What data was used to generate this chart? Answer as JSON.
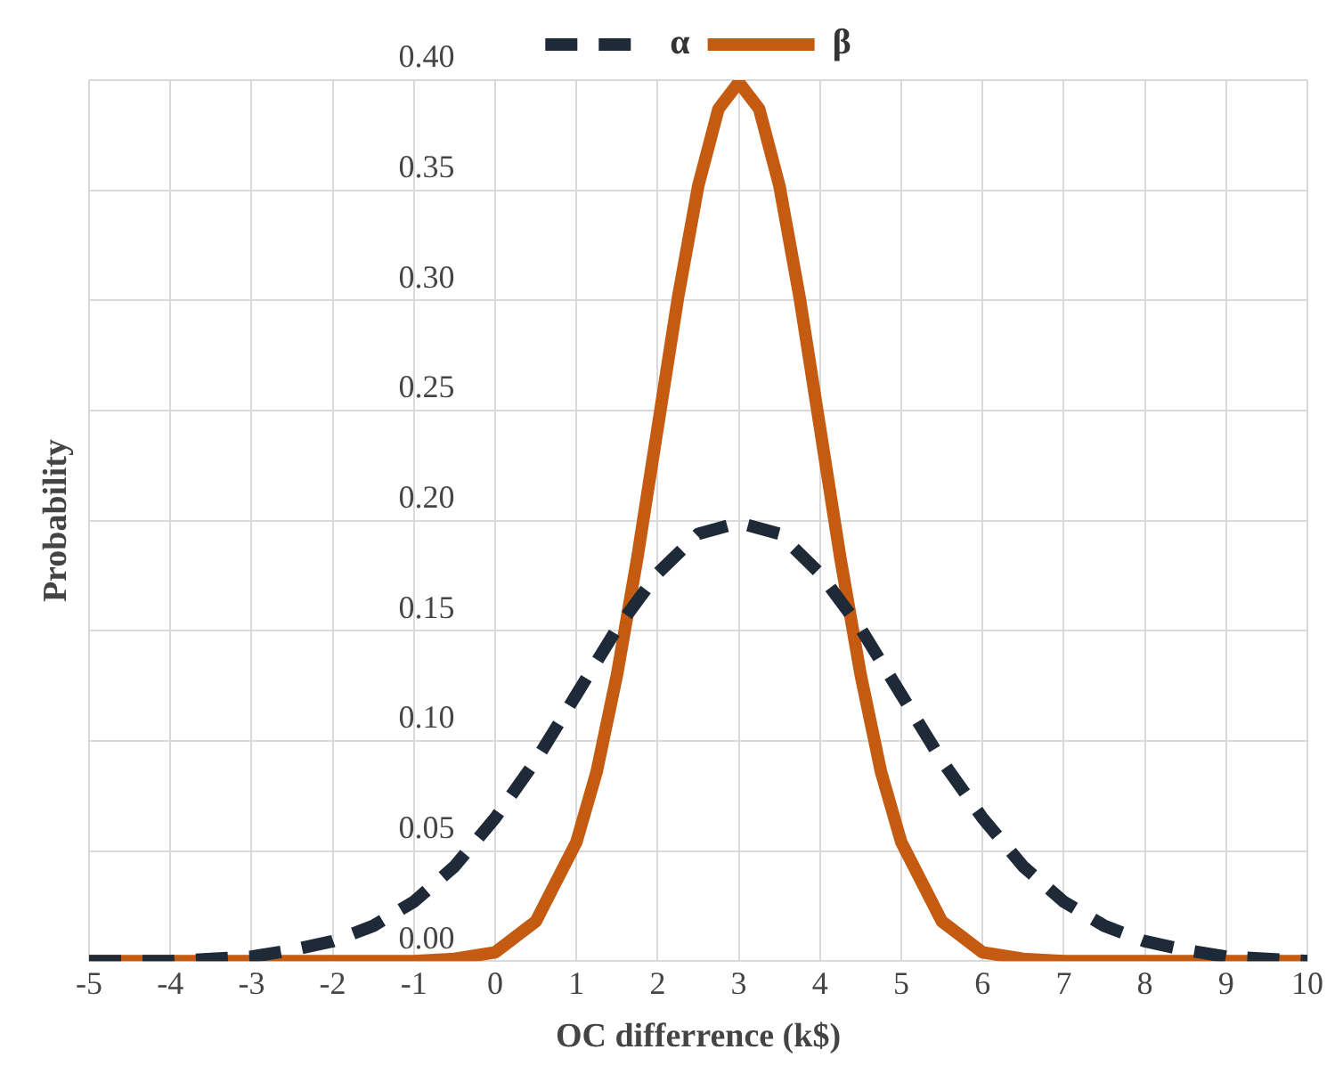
{
  "chart_data": {
    "type": "line",
    "xlabel": "OC differrence (k$)",
    "ylabel": "Probability",
    "xlim": [
      -5,
      10
    ],
    "xticks": [
      -5,
      -4,
      -3,
      -2,
      -1,
      0,
      1,
      2,
      3,
      4,
      5,
      6,
      7,
      8,
      9,
      10
    ],
    "ylim": [
      0,
      0.4
    ],
    "yticks": [
      {
        "value": 0,
        "label": "0.00"
      },
      {
        "value": 0.05,
        "label": "0.05"
      },
      {
        "value": 0.1,
        "label": "0.10"
      },
      {
        "value": 0.15,
        "label": "0.15"
      },
      {
        "value": 0.2,
        "label": "0.20"
      },
      {
        "value": 0.25,
        "label": "0.25"
      },
      {
        "value": 0.3,
        "label": "0.30"
      },
      {
        "value": 0.35,
        "label": "0.35"
      },
      {
        "value": 0.4,
        "label": "0.40"
      }
    ],
    "grid": true,
    "legend": "top",
    "marker": "none",
    "series": [
      {
        "name": "α",
        "color": "#1f2a38",
        "line_style": "dashed",
        "x": [
          -5,
          -4.5,
          -4,
          -3.5,
          -3,
          -2.5,
          -2,
          -1.5,
          -1,
          -0.5,
          0,
          0.5,
          1,
          1.5,
          2,
          2.5,
          3,
          3.5,
          4,
          4.5,
          5,
          5.5,
          6,
          6.5,
          7,
          7.5,
          8,
          8.5,
          9,
          9.5,
          10
        ],
        "values": [
          0.0,
          0.0,
          0.0,
          0.001,
          0.002,
          0.005,
          0.009,
          0.016,
          0.027,
          0.043,
          0.065,
          0.091,
          0.121,
          0.151,
          0.176,
          0.194,
          0.199,
          0.194,
          0.176,
          0.151,
          0.121,
          0.091,
          0.065,
          0.043,
          0.027,
          0.016,
          0.009,
          0.005,
          0.002,
          0.001,
          0.0
        ]
      },
      {
        "name": "β",
        "color": "#c55a11",
        "line_style": "solid",
        "x": [
          -5,
          -1,
          -0.5,
          0,
          0.5,
          1,
          1.25,
          1.5,
          1.75,
          2,
          2.25,
          2.5,
          2.75,
          3,
          3.25,
          3.5,
          3.75,
          4,
          4.25,
          4.5,
          4.75,
          5,
          5.5,
          6,
          6.5,
          7,
          10
        ],
        "values": [
          0.0,
          0.0,
          0.001,
          0.004,
          0.018,
          0.054,
          0.086,
          0.13,
          0.183,
          0.242,
          0.301,
          0.352,
          0.387,
          0.399,
          0.387,
          0.352,
          0.301,
          0.242,
          0.183,
          0.13,
          0.086,
          0.054,
          0.018,
          0.004,
          0.001,
          0.0,
          0.0
        ]
      }
    ]
  }
}
